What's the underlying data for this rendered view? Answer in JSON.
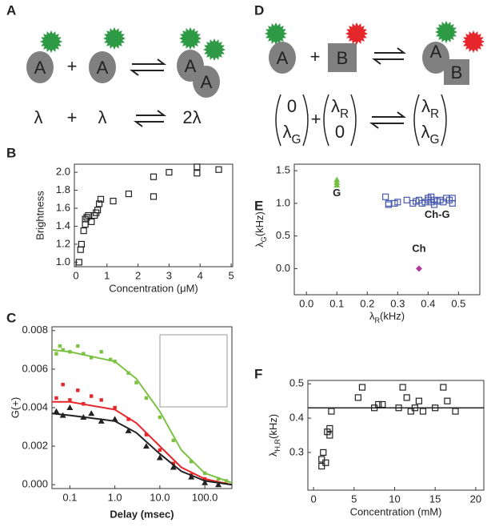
{
  "panel_labels": [
    "A",
    "B",
    "C",
    "D",
    "E",
    "F"
  ],
  "diagram_a": {
    "row1": [
      "A",
      "+",
      "A",
      "A",
      "A"
    ],
    "row2": [
      "λ",
      "+",
      "λ",
      "2λ"
    ]
  },
  "diagram_d": {
    "row1": [
      "A",
      "+",
      "B",
      "A",
      "B"
    ],
    "vectors": {
      "left": {
        "top": [
          "0"
        ],
        "bottom": [
          "λ",
          "G"
        ]
      },
      "plus": "+",
      "middle": {
        "top": [
          "λ",
          "R"
        ],
        "bottom": [
          "0"
        ]
      },
      "right": {
        "top": [
          "λ",
          "R"
        ],
        "bottom": [
          "λ",
          "G"
        ]
      }
    }
  },
  "chart_data": [
    {
      "type": "scatter",
      "x_label": "Concentration (μM)",
      "y_label": "Brightness",
      "xlim": [
        -0.05,
        5.05
      ],
      "ylim": [
        0.95,
        2.09
      ],
      "xticks": [
        0,
        1,
        2,
        3,
        4,
        5
      ],
      "yticks": [
        {
          "value": 1,
          "label": "1.0"
        },
        1.2,
        1.4,
        1.6,
        1.8,
        {
          "value": 2,
          "label": "2.0"
        }
      ],
      "series": [
        {
          "color": "#222222",
          "marker": "open-square",
          "style": "points",
          "x": [
            0.1,
            0.15,
            0.18,
            0.25,
            0.3,
            0.3,
            0.35,
            0.4,
            0.5,
            0.6,
            0.65,
            0.7,
            0.75,
            0.8,
            1.2,
            1.7,
            2.5,
            2.5,
            3.0,
            3.9,
            3.9,
            4.6
          ],
          "values": [
            1.0,
            1.14,
            1.2,
            1.35,
            1.42,
            1.48,
            1.5,
            1.52,
            1.45,
            1.52,
            1.55,
            1.58,
            1.65,
            1.7,
            1.68,
            1.76,
            1.73,
            1.95,
            2.0,
            2.06,
            1.99,
            2.03
          ]
        }
      ]
    },
    {
      "type": "scatter",
      "x_label": "Delay (msec)",
      "y_label": "G(+)",
      "xscale": "log",
      "xlim": [
        0.04,
        400
      ],
      "ylim": [
        -0.0002,
        0.0082
      ],
      "xticks": [
        0.1,
        {
          "value": 1,
          "label": "1.0"
        },
        {
          "value": 10,
          "label": "10.0"
        },
        {
          "value": 100,
          "label": "100.0"
        }
      ],
      "yticks": [
        {
          "value": 0,
          "label": "0.000"
        },
        0.002,
        0.004,
        0.006,
        0.008
      ],
      "series": [
        {
          "color": "#7dc242",
          "marker": "square",
          "style": "points",
          "x": [
            0.05,
            0.06,
            0.07,
            0.1,
            0.15,
            0.2,
            0.3,
            0.5,
            0.8,
            1,
            2,
            3,
            5,
            10,
            20,
            50,
            100,
            200,
            300
          ],
          "values": [
            0.0068,
            0.0072,
            0.007,
            0.0069,
            0.0072,
            0.0068,
            0.0066,
            0.0069,
            0.0065,
            0.0064,
            0.0058,
            0.0053,
            0.0045,
            0.0035,
            0.0023,
            0.0012,
            0.0006,
            0.0003,
            0.0002
          ]
        },
        {
          "color": "#7dc242",
          "style": "line",
          "x": [
            0.04,
            0.1,
            1,
            3,
            10,
            30,
            100,
            400
          ],
          "values": [
            0.007,
            0.0069,
            0.0064,
            0.0055,
            0.0038,
            0.0018,
            0.0006,
            0.0001
          ]
        },
        {
          "color": "#e5262a",
          "marker": "square",
          "style": "points",
          "x": [
            0.05,
            0.07,
            0.1,
            0.15,
            0.2,
            0.3,
            0.5,
            1,
            2,
            5,
            10,
            20,
            50,
            100
          ],
          "values": [
            0.0045,
            0.0052,
            0.0044,
            0.0049,
            0.0042,
            0.0046,
            0.0044,
            0.004,
            0.0034,
            0.0026,
            0.0018,
            0.0011,
            0.0005,
            0.0003
          ]
        },
        {
          "color": "#e5262a",
          "style": "line",
          "x": [
            0.04,
            0.1,
            1,
            3,
            10,
            30,
            100,
            400
          ],
          "values": [
            0.0043,
            0.0043,
            0.0039,
            0.0032,
            0.002,
            0.0009,
            0.0003,
            0.0
          ]
        },
        {
          "color": "#222222",
          "marker": "triangle",
          "style": "points",
          "x": [
            0.05,
            0.07,
            0.1,
            0.2,
            0.3,
            0.5,
            1,
            2,
            5,
            10,
            20,
            50,
            100,
            200
          ],
          "values": [
            0.0038,
            0.0036,
            0.004,
            0.0035,
            0.0037,
            0.0033,
            0.0034,
            0.0028,
            0.002,
            0.0014,
            0.0009,
            0.0004,
            0.0001,
            0.0
          ]
        },
        {
          "color": "#222222",
          "style": "line",
          "x": [
            0.04,
            0.1,
            1,
            3,
            10,
            30,
            100,
            400
          ],
          "values": [
            0.0037,
            0.0036,
            0.0033,
            0.0027,
            0.0016,
            0.0007,
            0.0002,
            0.0
          ]
        }
      ]
    },
    {
      "type": "scatter",
      "x_label": [
        "λ",
        "R",
        "(kHz)"
      ],
      "y_label": [
        "λ",
        "G",
        "(kHz)"
      ],
      "xlim": [
        -0.04,
        0.57
      ],
      "ylim": [
        -0.4,
        1.6
      ],
      "xticks": [
        {
          "value": 0,
          "label": "0.0"
        },
        0.1,
        0.2,
        0.3,
        0.4,
        0.5
      ],
      "yticks": [
        {
          "value": 0,
          "label": "0.0"
        },
        0.5,
        {
          "value": 1,
          "label": "1.0"
        },
        1.5
      ],
      "series": [
        {
          "color": "#74c043",
          "marker": "triangle",
          "style": "points",
          "x": [
            0.1,
            0.1,
            0.1
          ],
          "values": [
            1.28,
            1.32,
            1.36
          ]
        },
        {
          "color": "#4a5bb0",
          "marker": "open-square",
          "style": "points",
          "x": [
            0.26,
            0.27,
            0.27,
            0.29,
            0.3,
            0.33,
            0.35,
            0.36,
            0.37,
            0.38,
            0.39,
            0.4,
            0.4,
            0.41,
            0.41,
            0.42,
            0.42,
            0.43,
            0.44,
            0.45,
            0.46,
            0.47,
            0.48,
            0.48
          ],
          "values": [
            1.1,
            1.0,
            0.98,
            1.0,
            1.02,
            1.05,
            1.0,
            1.03,
            1.05,
            1.0,
            1.02,
            1.08,
            1.05,
            1.1,
            1.02,
            1.05,
            0.98,
            1.03,
            1.05,
            1.02,
            1.08,
            1.05,
            1.0,
            1.08
          ]
        },
        {
          "color": "#b0399e",
          "marker": "diamond",
          "style": "points",
          "x": [
            0.37
          ],
          "values": [
            0.0
          ]
        }
      ],
      "annotations": [
        {
          "text": "G",
          "color": "#74c043"
        },
        {
          "text": "Ch-G",
          "color": "#4a5bb0"
        },
        {
          "text": "Ch",
          "color": "#b0399e"
        }
      ]
    },
    {
      "type": "scatter",
      "x_label": "Concentration (mM)",
      "y_label": [
        "λ",
        "H,R",
        "(kHz)"
      ],
      "xlim": [
        -0.7,
        21
      ],
      "ylim": [
        0.19,
        0.51
      ],
      "xticks": [
        0,
        5,
        10,
        15,
        20
      ],
      "yticks": [
        0.3,
        0.4,
        0.5
      ],
      "hline": 0.43,
      "series": [
        {
          "color": "#222222",
          "marker": "open-square",
          "style": "points",
          "x": [
            1,
            1,
            1.2,
            1.5,
            1.7,
            2,
            2,
            2.2,
            5.5,
            6,
            7.5,
            8,
            8.5,
            10.5,
            11,
            11.5,
            12,
            12.5,
            13,
            13.5,
            15,
            16,
            16.5,
            17.5
          ],
          "values": [
            0.28,
            0.26,
            0.3,
            0.27,
            0.36,
            0.35,
            0.37,
            0.42,
            0.46,
            0.49,
            0.43,
            0.44,
            0.44,
            0.43,
            0.49,
            0.46,
            0.42,
            0.43,
            0.45,
            0.42,
            0.43,
            0.49,
            0.45,
            0.42
          ]
        }
      ]
    }
  ]
}
